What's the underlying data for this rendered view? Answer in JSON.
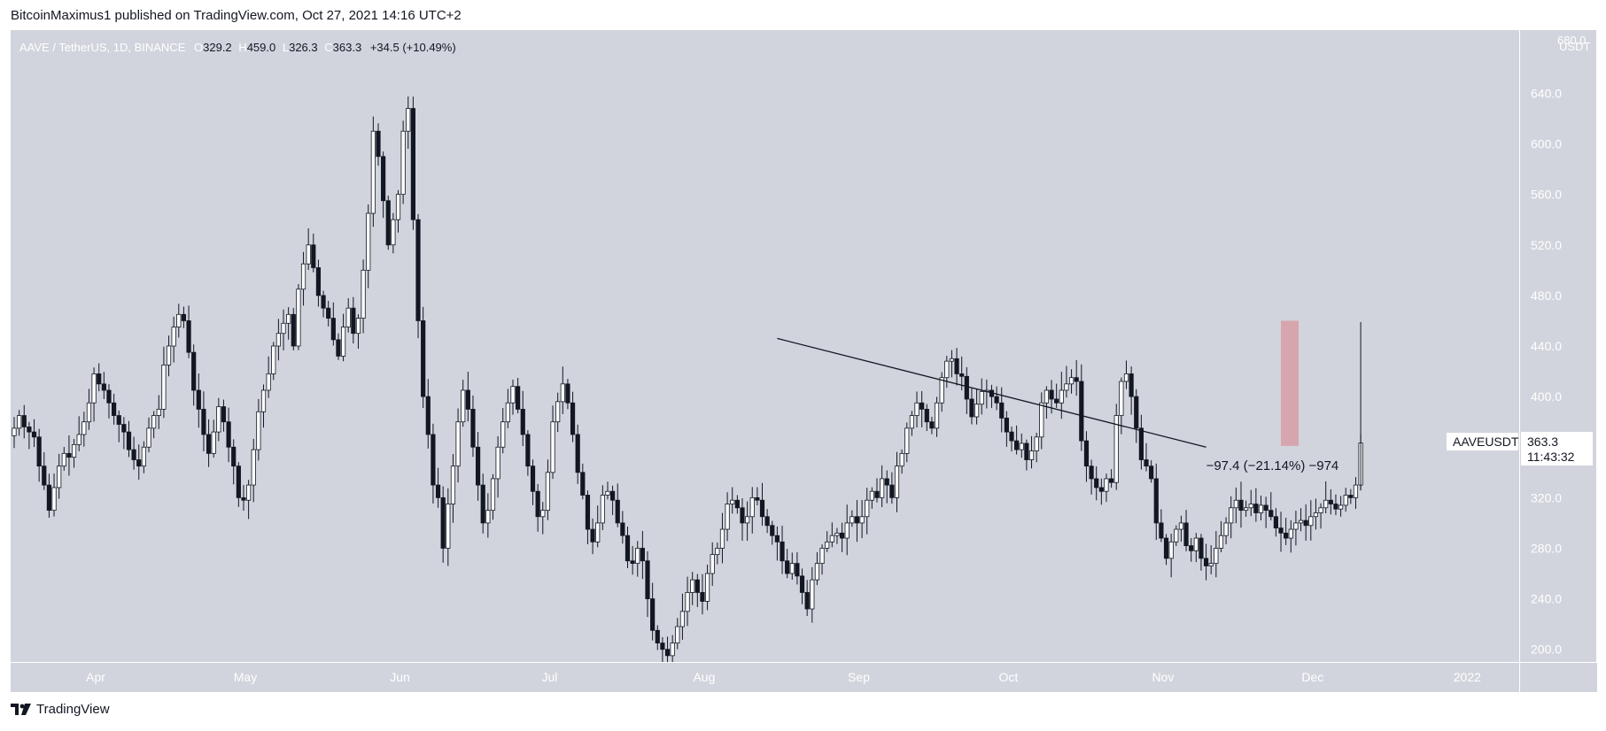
{
  "header": {
    "text": "BitcoinMaximus1 published on TradingView.com, Oct 27, 2021 14:16 UTC+2"
  },
  "legend": {
    "symbol": "AAVE / TetherUS, 1D, BINANCE",
    "o_label": "O",
    "o_value": "329.2",
    "h_label": "H",
    "h_value": "459.0",
    "l_label": "L",
    "l_value": "326.3",
    "c_label": "C",
    "c_value": "363.3",
    "change": "+34.5 (+10.49%)"
  },
  "price_axis": {
    "currency": "USDT",
    "top_partial": "680.0",
    "ticker_label": "AAVEUSDT",
    "last_price": "363.3",
    "countdown": "11:43:32"
  },
  "measure_text": "−97.4 (−21.14%) −974",
  "footer": {
    "brand": "TradingView"
  },
  "colors": {
    "background": "#d1d4dc",
    "candle_up_fill": "#ffffff",
    "candle_down_fill": "#131722",
    "candle_outline": "#131722",
    "trendline": "#131722",
    "target_box": "#d7a5ad"
  },
  "chart_data": {
    "type": "candlestick",
    "symbol": "AAVE / TetherUS",
    "interval": "1D",
    "exchange": "BINANCE",
    "ylim": [
      190,
      690
    ],
    "y_ticks": [
      200,
      240,
      280,
      320,
      360,
      400,
      440,
      480,
      520,
      560,
      600,
      640
    ],
    "month_labels": [
      {
        "label": "Apr",
        "date": "2021-04-01"
      },
      {
        "label": "May",
        "date": "2021-05-01"
      },
      {
        "label": "Jun",
        "date": "2021-06-01"
      },
      {
        "label": "Jul",
        "date": "2021-07-01"
      },
      {
        "label": "Aug",
        "date": "2021-08-01"
      },
      {
        "label": "Sep",
        "date": "2021-09-01"
      },
      {
        "label": "Oct",
        "date": "2021-10-01"
      },
      {
        "label": "Nov",
        "date": "2021-11-01"
      },
      {
        "label": "Dec",
        "date": "2021-12-01"
      },
      {
        "label": "2022",
        "date": "2022-01-01"
      }
    ],
    "last_price": 363.3,
    "trendline": {
      "from": {
        "date": "2021-08-16",
        "price": 446
      },
      "to": {
        "date": "2021-11-10",
        "price": 360
      }
    },
    "target_box": {
      "date_from": "2021-11-25",
      "date_to": "2021-11-28",
      "price_top": 460,
      "price_bottom": 361
    },
    "measure_anchor": {
      "date": "2021-11-10",
      "price": 342
    },
    "first_date": "2021-03-16",
    "closes": [
      375,
      385,
      376,
      372,
      368,
      345,
      330,
      310,
      328,
      345,
      355,
      352,
      362,
      370,
      380,
      395,
      418,
      410,
      405,
      395,
      385,
      378,
      372,
      358,
      350,
      345,
      360,
      375,
      385,
      390,
      425,
      440,
      455,
      465,
      460,
      435,
      405,
      390,
      370,
      355,
      372,
      392,
      380,
      360,
      345,
      320,
      318,
      330,
      358,
      388,
      405,
      418,
      440,
      450,
      458,
      465,
      440,
      485,
      505,
      520,
      502,
      480,
      470,
      462,
      445,
      432,
      455,
      470,
      450,
      462,
      500,
      545,
      610,
      590,
      555,
      520,
      540,
      560,
      610,
      628,
      540,
      460,
      400,
      370,
      330,
      320,
      280,
      315,
      345,
      380,
      405,
      390,
      360,
      330,
      300,
      310,
      335,
      360,
      380,
      395,
      408,
      390,
      370,
      345,
      325,
      305,
      310,
      340,
      380,
      396,
      410,
      395,
      370,
      340,
      322,
      295,
      285,
      300,
      322,
      325,
      318,
      300,
      290,
      270,
      268,
      280,
      270,
      240,
      215,
      205,
      200,
      195,
      205,
      218,
      230,
      245,
      255,
      245,
      238,
      260,
      275,
      280,
      295,
      315,
      318,
      312,
      300,
      305,
      320,
      318,
      305,
      298,
      290,
      285,
      270,
      260,
      268,
      258,
      245,
      232,
      255,
      268,
      280,
      285,
      290,
      292,
      288,
      300,
      305,
      300,
      305,
      318,
      325,
      320,
      335,
      330,
      320,
      345,
      355,
      375,
      385,
      395,
      390,
      380,
      375,
      395,
      415,
      428,
      430,
      418,
      416,
      398,
      384,
      394,
      404,
      405,
      400,
      395,
      383,
      372,
      365,
      358,
      363,
      350,
      357,
      368,
      395,
      405,
      398,
      395,
      405,
      410,
      415,
      412,
      365,
      345,
      335,
      328,
      325,
      335,
      332,
      385,
      412,
      418,
      400,
      375,
      350,
      345,
      335,
      300,
      288,
      272,
      285,
      295,
      300,
      282,
      278,
      288,
      272,
      266,
      268,
      280,
      290,
      300,
      312,
      318,
      310,
      312,
      315,
      308,
      314,
      310,
      305,
      296,
      292,
      288,
      295,
      300,
      302,
      298,
      305,
      308,
      312,
      318,
      315,
      311,
      314,
      322,
      320,
      330,
      363.3
    ]
  }
}
